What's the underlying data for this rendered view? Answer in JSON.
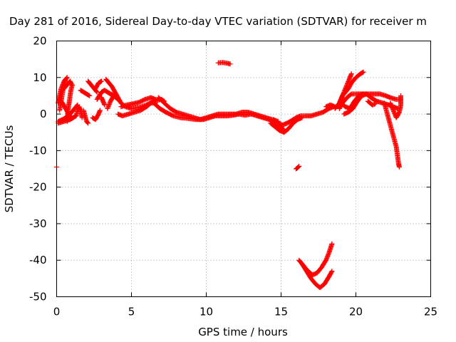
{
  "chart_data": {
    "type": "scatter",
    "title": "Day 281 of 2016, Sidereal Day-to-day VTEC variation (SDTVAR) for receiver m",
    "xlabel": "GPS time / hours",
    "ylabel": "SDTVAR / TECUs",
    "xlim": [
      0,
      25
    ],
    "ylim": [
      -50,
      20
    ],
    "xticks": [
      0,
      5,
      10,
      15,
      20,
      25
    ],
    "yticks": [
      -50,
      -40,
      -30,
      -20,
      -10,
      0,
      10,
      20
    ],
    "x_tick_labels": [
      "0",
      "5",
      "10",
      "15",
      "20",
      "25"
    ],
    "y_tick_labels": [
      "-50",
      "-40",
      "-30",
      "-20",
      "-10",
      "0",
      "10",
      "20"
    ],
    "grid": true,
    "marker": "+",
    "color": "#ff0000",
    "traces": [
      [
        [
          0.0,
          -14.5
        ]
      ],
      [
        [
          0.1,
          -2
        ],
        [
          0.4,
          -1.5
        ],
        [
          0.8,
          -0.5
        ],
        [
          1.0,
          0.5
        ],
        [
          1.2,
          1.5
        ],
        [
          1.4,
          2.5
        ]
      ],
      [
        [
          0.1,
          -2.5
        ],
        [
          0.5,
          -2
        ],
        [
          0.9,
          -1.5
        ],
        [
          1.1,
          -1
        ],
        [
          1.3,
          -0.5
        ]
      ],
      [
        [
          0.1,
          3
        ],
        [
          0.2,
          5
        ],
        [
          0.3,
          7
        ],
        [
          0.5,
          9
        ],
        [
          0.7,
          10
        ]
      ],
      [
        [
          0.15,
          4
        ],
        [
          0.4,
          3
        ],
        [
          0.6,
          1.5
        ],
        [
          0.8,
          0
        ],
        [
          1.0,
          -1
        ]
      ],
      [
        [
          0.2,
          1
        ],
        [
          0.4,
          6
        ],
        [
          0.6,
          9.5
        ]
      ],
      [
        [
          0.5,
          7
        ],
        [
          0.9,
          9
        ],
        [
          1.0,
          8
        ]
      ],
      [
        [
          0.7,
          -2
        ],
        [
          0.75,
          1
        ],
        [
          0.85,
          3.5
        ],
        [
          0.95,
          6.5
        ],
        [
          1.05,
          8
        ]
      ],
      [
        [
          1.3,
          -0.5
        ],
        [
          1.4,
          1
        ],
        [
          1.5,
          2
        ],
        [
          1.6,
          1
        ],
        [
          1.7,
          -1
        ]
      ],
      [
        [
          1.6,
          6.5
        ],
        [
          1.8,
          6
        ],
        [
          2.0,
          5.5
        ],
        [
          2.2,
          5
        ]
      ],
      [
        [
          1.8,
          1
        ],
        [
          2.0,
          -2
        ],
        [
          2.1,
          -2.5
        ]
      ],
      [
        [
          2.1,
          9
        ],
        [
          2.3,
          8
        ],
        [
          2.5,
          7
        ],
        [
          2.7,
          6
        ]
      ],
      [
        [
          2.4,
          -1
        ],
        [
          2.6,
          -1.5
        ],
        [
          2.8,
          0
        ],
        [
          2.9,
          1
        ]
      ],
      [
        [
          2.6,
          7
        ],
        [
          2.8,
          8.5
        ],
        [
          3.0,
          9
        ]
      ],
      [
        [
          2.7,
          4
        ],
        [
          3.0,
          6
        ],
        [
          3.2,
          6.5
        ],
        [
          3.4,
          6
        ],
        [
          3.6,
          5.5
        ],
        [
          3.9,
          5
        ]
      ],
      [
        [
          3.0,
          4.5
        ],
        [
          3.1,
          3.5
        ],
        [
          3.2,
          2.5
        ]
      ],
      [
        [
          3.3,
          9.5
        ],
        [
          3.5,
          8.5
        ],
        [
          3.7,
          7.5
        ],
        [
          3.9,
          6
        ],
        [
          4.1,
          4.5
        ],
        [
          4.3,
          3
        ],
        [
          4.6,
          2
        ],
        [
          5.0,
          1.5
        ],
        [
          5.5,
          1.8
        ],
        [
          6.0,
          2.5
        ],
        [
          6.5,
          3.5
        ],
        [
          7.0,
          4
        ],
        [
          7.2,
          3.5
        ]
      ],
      [
        [
          3.4,
          1.5
        ],
        [
          3.6,
          3.5
        ],
        [
          3.8,
          5
        ],
        [
          4.1,
          4
        ]
      ],
      [
        [
          4.1,
          0
        ],
        [
          4.4,
          -0.5
        ],
        [
          4.8,
          0
        ],
        [
          5.2,
          0.5
        ],
        [
          5.6,
          1
        ],
        [
          6.0,
          2
        ],
        [
          6.3,
          3
        ],
        [
          6.6,
          3
        ]
      ],
      [
        [
          4.3,
          2
        ],
        [
          4.7,
          2.5
        ],
        [
          5.1,
          2.8
        ],
        [
          5.5,
          3.2
        ],
        [
          5.9,
          4
        ],
        [
          6.3,
          4.5
        ],
        [
          6.6,
          4
        ]
      ],
      [
        [
          6.5,
          3
        ],
        [
          6.9,
          1.5
        ],
        [
          7.3,
          0.5
        ],
        [
          7.8,
          -0.5
        ],
        [
          8.3,
          -1
        ],
        [
          8.8,
          -1.2
        ],
        [
          9.3,
          -1.5
        ],
        [
          9.8,
          -1.5
        ],
        [
          10.2,
          -1
        ],
        [
          10.6,
          -0.5
        ],
        [
          11.0,
          -0.5
        ],
        [
          11.4,
          -0.5
        ],
        [
          11.8,
          -0.3
        ],
        [
          12.2,
          0
        ],
        [
          12.6,
          -0.3
        ],
        [
          13.0,
          0
        ],
        [
          13.4,
          -0.5
        ],
        [
          13.8,
          -1
        ],
        [
          14.2,
          -1.5
        ],
        [
          14.6,
          -2.5
        ],
        [
          15.0,
          -3.5
        ],
        [
          15.2,
          -4.5
        ]
      ],
      [
        [
          6.8,
          4.5
        ],
        [
          7.2,
          3
        ],
        [
          7.6,
          1.5
        ],
        [
          8.0,
          0.5
        ],
        [
          8.4,
          0
        ],
        [
          8.8,
          -0.5
        ],
        [
          9.2,
          -1
        ],
        [
          9.6,
          -1.5
        ],
        [
          10.0,
          -1
        ],
        [
          10.4,
          -0.5
        ],
        [
          10.8,
          0
        ],
        [
          11.2,
          0
        ],
        [
          11.6,
          0
        ],
        [
          12.0,
          0
        ],
        [
          12.4,
          0.5
        ],
        [
          12.8,
          0.5
        ],
        [
          13.2,
          0
        ],
        [
          13.6,
          -0.5
        ],
        [
          14.0,
          -1
        ],
        [
          14.4,
          -1.5
        ],
        [
          14.8,
          -2
        ]
      ],
      [
        [
          10.8,
          14
        ],
        [
          11.1,
          14.1
        ],
        [
          11.4,
          13.9
        ],
        [
          11.6,
          13.7
        ]
      ],
      [
        [
          14.3,
          -2.5
        ],
        [
          14.6,
          -3.5
        ],
        [
          14.9,
          -4.5
        ],
        [
          15.2,
          -5
        ],
        [
          15.5,
          -4
        ],
        [
          15.8,
          -2.5
        ],
        [
          16.1,
          -1.5
        ],
        [
          16.4,
          -1
        ]
      ],
      [
        [
          14.5,
          -1.5
        ],
        [
          14.8,
          -2.5
        ],
        [
          15.1,
          -3
        ],
        [
          15.4,
          -2.5
        ],
        [
          15.7,
          -1.8
        ],
        [
          16.0,
          -1
        ],
        [
          16.3,
          -0.5
        ],
        [
          16.6,
          -0.5
        ],
        [
          17.0,
          -0.5
        ],
        [
          17.4,
          0
        ],
        [
          17.8,
          0.5
        ],
        [
          18.2,
          1.5
        ],
        [
          18.5,
          2
        ]
      ],
      [
        [
          16.0,
          -15
        ],
        [
          16.1,
          -14.7
        ],
        [
          16.2,
          -14.3
        ]
      ],
      [
        [
          16.2,
          -40
        ],
        [
          16.5,
          -41.5
        ],
        [
          16.8,
          -43
        ],
        [
          17.1,
          -44
        ],
        [
          17.4,
          -43.5
        ],
        [
          17.7,
          -42
        ],
        [
          18.0,
          -40
        ],
        [
          18.2,
          -38
        ],
        [
          18.4,
          -35.5
        ]
      ],
      [
        [
          16.4,
          -41
        ],
        [
          16.7,
          -43
        ],
        [
          17.0,
          -45
        ],
        [
          17.3,
          -46.5
        ],
        [
          17.6,
          -47.5
        ],
        [
          17.9,
          -46.5
        ],
        [
          18.2,
          -44.5
        ],
        [
          18.4,
          -43
        ]
      ],
      [
        [
          18.0,
          2
        ],
        [
          18.3,
          2.5
        ],
        [
          18.6,
          2
        ]
      ],
      [
        [
          18.6,
          1.5
        ],
        [
          18.9,
          3
        ],
        [
          19.1,
          5
        ],
        [
          19.3,
          6
        ],
        [
          19.5,
          7
        ],
        [
          19.7,
          8.5
        ],
        [
          20.0,
          10
        ],
        [
          20.3,
          11
        ],
        [
          20.5,
          11.5
        ]
      ],
      [
        [
          18.8,
          2
        ],
        [
          19.0,
          4
        ],
        [
          19.2,
          6
        ],
        [
          19.4,
          8
        ],
        [
          19.6,
          10
        ],
        [
          19.7,
          11
        ]
      ],
      [
        [
          18.9,
          1.5
        ],
        [
          19.1,
          3
        ],
        [
          19.4,
          4.5
        ],
        [
          19.7,
          5.5
        ],
        [
          20.0,
          5.5
        ],
        [
          20.4,
          5.5
        ],
        [
          20.8,
          5.5
        ],
        [
          21.2,
          5.5
        ],
        [
          21.6,
          5.5
        ],
        [
          22.0,
          5
        ],
        [
          22.3,
          4.5
        ],
        [
          22.7,
          4
        ],
        [
          23.0,
          4
        ]
      ],
      [
        [
          19.0,
          3
        ],
        [
          19.3,
          2
        ],
        [
          19.6,
          1.5
        ],
        [
          19.9,
          3.5
        ],
        [
          20.2,
          5
        ],
        [
          20.5,
          5.5
        ]
      ],
      [
        [
          19.2,
          0
        ],
        [
          19.5,
          0.5
        ],
        [
          19.8,
          1.5
        ],
        [
          20.1,
          3.5
        ],
        [
          20.4,
          5
        ],
        [
          20.7,
          5.5
        ],
        [
          21.0,
          4.5
        ],
        [
          21.4,
          3.5
        ],
        [
          21.8,
          3
        ],
        [
          22.2,
          2.5
        ],
        [
          22.5,
          2
        ],
        [
          22.8,
          1.5
        ]
      ],
      [
        [
          20.8,
          3.5
        ],
        [
          21.1,
          2.5
        ],
        [
          21.3,
          2.8
        ]
      ],
      [
        [
          21.9,
          3
        ],
        [
          22.0,
          1.5
        ],
        [
          22.1,
          0
        ],
        [
          22.2,
          -1.5
        ],
        [
          22.3,
          -3
        ],
        [
          22.4,
          -4.5
        ],
        [
          22.5,
          -6
        ],
        [
          22.6,
          -7.5
        ],
        [
          22.7,
          -9
        ],
        [
          22.75,
          -10.5
        ],
        [
          22.8,
          -12
        ],
        [
          22.85,
          -13.5
        ],
        [
          22.9,
          -14.5
        ]
      ],
      [
        [
          22.3,
          3
        ],
        [
          22.5,
          1
        ],
        [
          22.7,
          -1
        ],
        [
          22.9,
          0.5
        ],
        [
          23.0,
          2.5
        ],
        [
          23.0,
          5
        ]
      ]
    ]
  }
}
